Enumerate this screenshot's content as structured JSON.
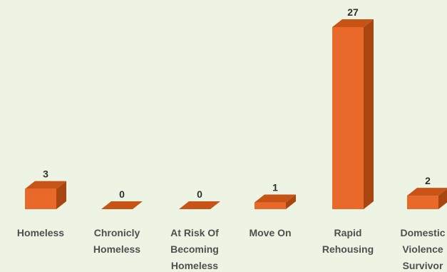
{
  "chart_data": {
    "type": "bar",
    "style": "3d-column",
    "categories": [
      "Homeless",
      "Chronicly Homeless",
      "At Risk Of Becoming Homeless",
      "Move On",
      "Rapid Rehousing",
      "Domestic Violence Survivor"
    ],
    "category_lines": [
      [
        "Homeless"
      ],
      [
        "Chronicly",
        "Homeless"
      ],
      [
        "At Risk Of",
        "Becoming",
        "Homeless"
      ],
      [
        "Move On"
      ],
      [
        "Rapid",
        "Rehousing"
      ],
      [
        "Domestic",
        "Violence",
        "Survivor"
      ]
    ],
    "values": [
      3,
      0,
      0,
      1,
      27,
      2
    ],
    "ylim": [
      0,
      27
    ],
    "grid": false,
    "legend": "none",
    "colors": {
      "background": "#eef4e3",
      "bar_front": "#e8692a",
      "bar_top": "#c75317",
      "bar_side": "#a84510",
      "label_text": "#2f2f2f",
      "tick_text": "#4f4f4f"
    }
  }
}
